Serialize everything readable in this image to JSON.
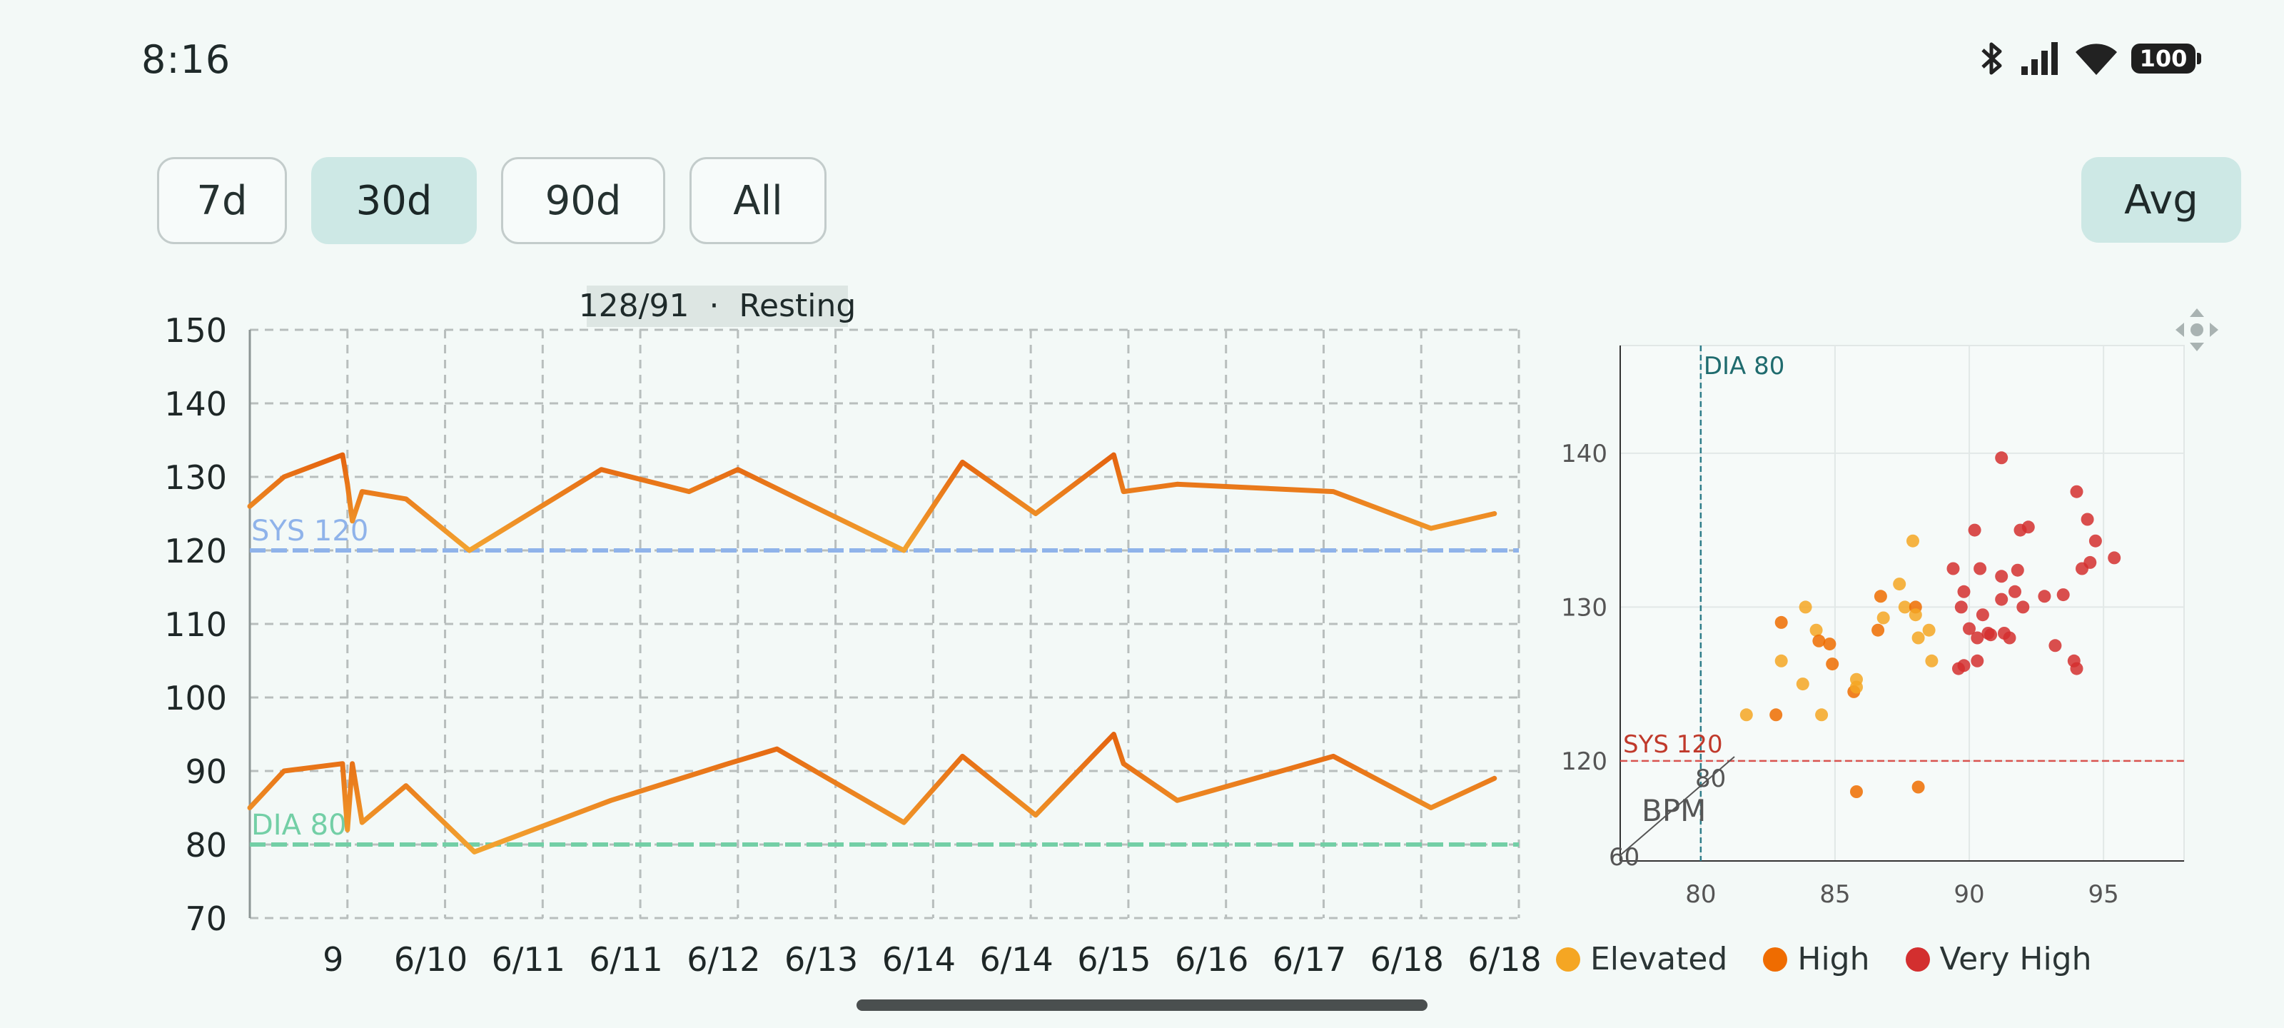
{
  "status_bar": {
    "time": "8:16",
    "battery": "100",
    "icons": [
      "bluetooth-icon",
      "signal-icon",
      "wifi-icon",
      "battery-icon"
    ]
  },
  "range_tabs": [
    {
      "label": "7d",
      "active": false
    },
    {
      "label": "30d",
      "active": true
    },
    {
      "label": "90d",
      "active": false
    },
    {
      "label": "All",
      "active": false
    }
  ],
  "avg_label": "Avg",
  "colors": {
    "accent": "#cde8e5",
    "elevated": "#f5a623",
    "high": "#ef6c00",
    "very_high": "#d32f2f",
    "sys_line": "#8fb3ea",
    "dia_line": "#73cfa6",
    "dia_ref": "#2e7d8a",
    "sys_ref": "#d9534f"
  },
  "trend_chart": {
    "tooltip": "128/91  ·  Resting",
    "y_ticks": [
      150,
      140,
      130,
      120,
      110,
      100,
      90,
      80,
      70
    ],
    "x_tick_labels": [
      "9",
      "6/10",
      "6/11",
      "6/11",
      "6/12",
      "6/13",
      "6/14",
      "6/14",
      "6/15",
      "6/16",
      "6/17",
      "6/18",
      "6/18"
    ],
    "ylim": [
      70,
      150
    ],
    "xlim": [
      0,
      13
    ],
    "sys_ref": {
      "label": "SYS 120",
      "value": 120
    },
    "dia_ref": {
      "label": "DIA 80",
      "value": 80
    }
  },
  "chart_data": [
    {
      "type": "line",
      "x_tick_labels": [
        "9",
        "6/10",
        "6/11",
        "6/11",
        "6/12",
        "6/13",
        "6/14",
        "6/14",
        "6/15",
        "6/16",
        "6/17",
        "6/18",
        "6/18"
      ],
      "ylim": [
        70,
        150
      ],
      "series": [
        {
          "key": "systolic",
          "points": [
            [
              0,
              126
            ],
            [
              0.35,
              130
            ],
            [
              0.95,
              133
            ],
            [
              1.0,
              129
            ],
            [
              1.05,
              124
            ],
            [
              1.15,
              128
            ],
            [
              1.6,
              127
            ],
            [
              2.25,
              120
            ],
            [
              3.6,
              131
            ],
            [
              4.5,
              128
            ],
            [
              5.0,
              131
            ],
            [
              6.7,
              120
            ],
            [
              7.3,
              132
            ],
            [
              8.05,
              125
            ],
            [
              8.85,
              133
            ],
            [
              8.95,
              128
            ],
            [
              9.5,
              129
            ],
            [
              11.1,
              128
            ],
            [
              12.1,
              123
            ],
            [
              12.75,
              125
            ]
          ]
        },
        {
          "key": "diastolic",
          "points": [
            [
              0,
              85
            ],
            [
              0.35,
              90
            ],
            [
              0.95,
              91
            ],
            [
              1.0,
              82
            ],
            [
              1.05,
              91
            ],
            [
              1.15,
              83
            ],
            [
              1.6,
              88
            ],
            [
              2.3,
              79
            ],
            [
              3.7,
              86
            ],
            [
              4.9,
              91
            ],
            [
              5.4,
              93
            ],
            [
              6.7,
              83
            ],
            [
              7.3,
              92
            ],
            [
              8.05,
              84
            ],
            [
              8.85,
              95
            ],
            [
              8.95,
              91
            ],
            [
              9.5,
              86
            ],
            [
              11.1,
              92
            ],
            [
              12.1,
              85
            ],
            [
              12.75,
              89
            ]
          ]
        }
      ]
    },
    {
      "type": "scatter",
      "x_ticks": [
        80,
        85,
        90,
        95
      ],
      "y_ticks": [
        120,
        130,
        140
      ],
      "xlim": [
        77,
        98
      ],
      "ylim": [
        113.5,
        147
      ],
      "x_ref": {
        "label": "DIA 80",
        "value": 80
      },
      "y_ref": {
        "label": "SYS 120",
        "value": 120
      },
      "axis_overlay": {
        "label": "BPM",
        "tick_a": "80",
        "tick_b": "60"
      },
      "legend": [
        "Elevated",
        "High",
        "Very High"
      ],
      "points": [
        [
          81.7,
          123,
          0
        ],
        [
          82.8,
          123,
          1
        ],
        [
          83.0,
          129,
          1
        ],
        [
          83.0,
          126.5,
          0
        ],
        [
          83.8,
          125,
          0
        ],
        [
          83.9,
          130,
          0
        ],
        [
          84.3,
          128.5,
          0
        ],
        [
          84.4,
          127.8,
          1
        ],
        [
          84.5,
          123,
          0
        ],
        [
          84.8,
          127.6,
          1
        ],
        [
          84.9,
          126.3,
          1
        ],
        [
          85.7,
          124.5,
          1
        ],
        [
          85.8,
          125.3,
          0
        ],
        [
          85.8,
          124.8,
          0
        ],
        [
          85.8,
          118,
          1
        ],
        [
          86.6,
          128.5,
          1
        ],
        [
          86.7,
          130.7,
          1
        ],
        [
          86.8,
          129.3,
          0
        ],
        [
          87.4,
          131.5,
          0
        ],
        [
          87.6,
          130,
          0
        ],
        [
          87.9,
          134.3,
          0
        ],
        [
          88.0,
          130,
          1
        ],
        [
          88.1,
          128,
          0
        ],
        [
          88.1,
          118.3,
          1
        ],
        [
          88.0,
          129.5,
          0
        ],
        [
          88.5,
          128.5,
          0
        ],
        [
          88.6,
          126.5,
          0
        ],
        [
          89.4,
          132.5,
          2
        ],
        [
          89.6,
          126,
          2
        ],
        [
          89.7,
          130,
          2
        ],
        [
          89.8,
          126.2,
          2
        ],
        [
          89.8,
          131,
          2
        ],
        [
          90.0,
          128.6,
          2
        ],
        [
          90.2,
          135,
          2
        ],
        [
          90.3,
          126.5,
          2
        ],
        [
          90.3,
          128,
          2
        ],
        [
          90.4,
          132.5,
          2
        ],
        [
          90.5,
          129.5,
          2
        ],
        [
          90.7,
          128.3,
          2
        ],
        [
          90.8,
          128.2,
          2
        ],
        [
          91.2,
          130.5,
          2
        ],
        [
          91.2,
          132,
          2
        ],
        [
          91.2,
          139.7,
          2
        ],
        [
          91.3,
          128.3,
          2
        ],
        [
          91.5,
          128,
          2
        ],
        [
          91.7,
          131,
          2
        ],
        [
          91.8,
          132.4,
          2
        ],
        [
          91.9,
          135,
          2
        ],
        [
          92.0,
          130,
          2
        ],
        [
          92.2,
          135.2,
          2
        ],
        [
          92.8,
          130.7,
          2
        ],
        [
          93.2,
          127.5,
          2
        ],
        [
          93.5,
          130.8,
          2
        ],
        [
          93.9,
          126.5,
          2
        ],
        [
          94.0,
          137.5,
          2
        ],
        [
          94.0,
          126,
          2
        ],
        [
          94.2,
          132.5,
          2
        ],
        [
          94.4,
          135.7,
          2
        ],
        [
          94.5,
          132.9,
          2
        ],
        [
          94.7,
          134.3,
          2
        ],
        [
          95.4,
          133.2,
          2
        ]
      ]
    }
  ]
}
